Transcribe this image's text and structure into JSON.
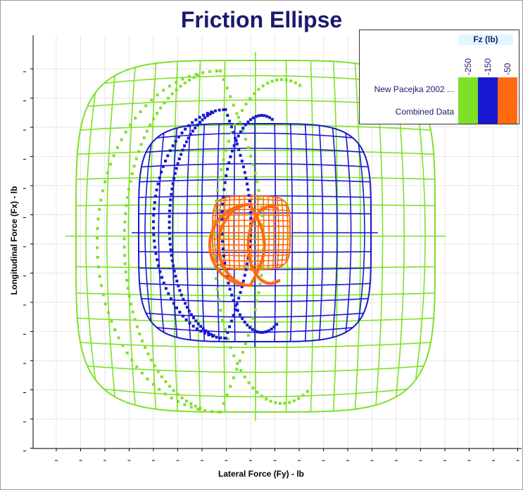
{
  "chart_data": {
    "type": "scatter",
    "title": "Friction Ellipse",
    "xlabel": "Lateral Force (Fy) - lb",
    "ylabel": "Longitudinal Force (Fx) - lb",
    "tick_labels_visible": false,
    "grid": true,
    "legend_placement": "top-right",
    "legend": {
      "color_title": "Fz (lb)",
      "color_levels": [
        "-250",
        "-150",
        "-50"
      ],
      "series_names": [
        "New Pacejka 2002 ...",
        "Combined Data"
      ]
    },
    "x_range": [
      -300,
      300
    ],
    "y_range": [
      -300,
      300
    ],
    "series": [
      {
        "name": "New Pacejka 2002 ...",
        "kind": "surface-mesh",
        "fz": -250,
        "color": "#7fe028",
        "center": [
          -5,
          10
        ],
        "half_width": 255,
        "half_height": 250
      },
      {
        "name": "New Pacejka 2002 ...",
        "kind": "surface-mesh",
        "fz": -150,
        "color": "#1818d0",
        "center": [
          -6,
          15
        ],
        "half_width": 165,
        "half_height": 155
      },
      {
        "name": "New Pacejka 2002 ...",
        "kind": "surface-mesh",
        "fz": -50,
        "color": "#ff6a10",
        "center": [
          -11,
          15
        ],
        "half_width": 55,
        "half_height": 52
      },
      {
        "name": "Combined Data",
        "kind": "points",
        "fz": -250,
        "color": "#7fe028",
        "fy_range": [
          -230,
          120
        ],
        "fx_range": [
          -240,
          245
        ]
      },
      {
        "name": "Combined Data",
        "kind": "points",
        "fz": -150,
        "color": "#1818d0",
        "fy_range": [
          -150,
          55
        ],
        "fx_range": [
          -135,
          190
        ]
      },
      {
        "name": "Combined Data",
        "kind": "points",
        "fz": -50,
        "color": "#ff6a10",
        "fy_range": [
          -70,
          45
        ],
        "fx_range": [
          -60,
          55
        ]
      }
    ]
  }
}
